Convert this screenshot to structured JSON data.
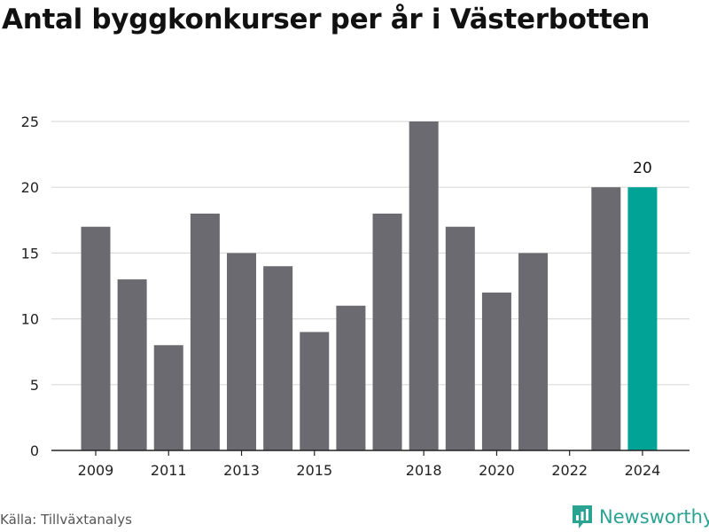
{
  "title": "Antal byggkonkurser per år i Västerbotten",
  "source": "Källa: Tillväxtanalys",
  "brand": {
    "name": "Newsworthy",
    "icon": "newsworthy-logo-icon",
    "color": "#2aa393"
  },
  "chart_data": {
    "type": "bar",
    "categories": [
      "2009",
      "2010",
      "2011",
      "2012",
      "2013",
      "2014",
      "2015",
      "2016",
      "2017",
      "2018",
      "2019",
      "2020",
      "2021",
      "2022",
      "2023",
      "2024"
    ],
    "values": [
      17,
      13,
      8,
      18,
      15,
      14,
      9,
      11,
      18,
      25,
      17,
      12,
      15,
      0,
      20,
      20
    ],
    "x_tick_labels": [
      "2009",
      "2011",
      "2013",
      "2015",
      "2018",
      "2020",
      "2022",
      "2024"
    ],
    "y_ticks": [
      0,
      5,
      10,
      15,
      20,
      25
    ],
    "ylim": [
      0,
      25
    ],
    "grid": true,
    "bar_color": "#6b6a70",
    "highlight_color": "#00a396",
    "highlight_category": "2024",
    "data_labels": [
      {
        "category": "2024",
        "text": "20"
      }
    ]
  }
}
